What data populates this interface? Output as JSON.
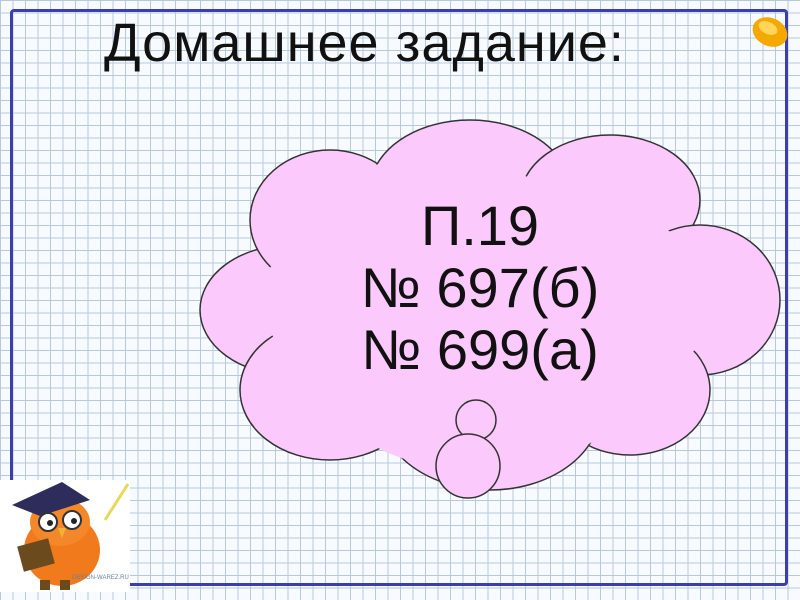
{
  "slide": {
    "title": "Домашнее задание:",
    "homework": {
      "line1": "П.19",
      "line2": "№ 697(б)",
      "line3": "№ 699(а)"
    },
    "watermark": "DESIGN-WAREZ.RU"
  },
  "colors": {
    "cloud_fill": "#fbc9fb",
    "frame": "#3a3fb0",
    "grid": "#b9c9dc"
  },
  "icons": [
    "owl-teacher-icon",
    "gold-coin-icon"
  ]
}
